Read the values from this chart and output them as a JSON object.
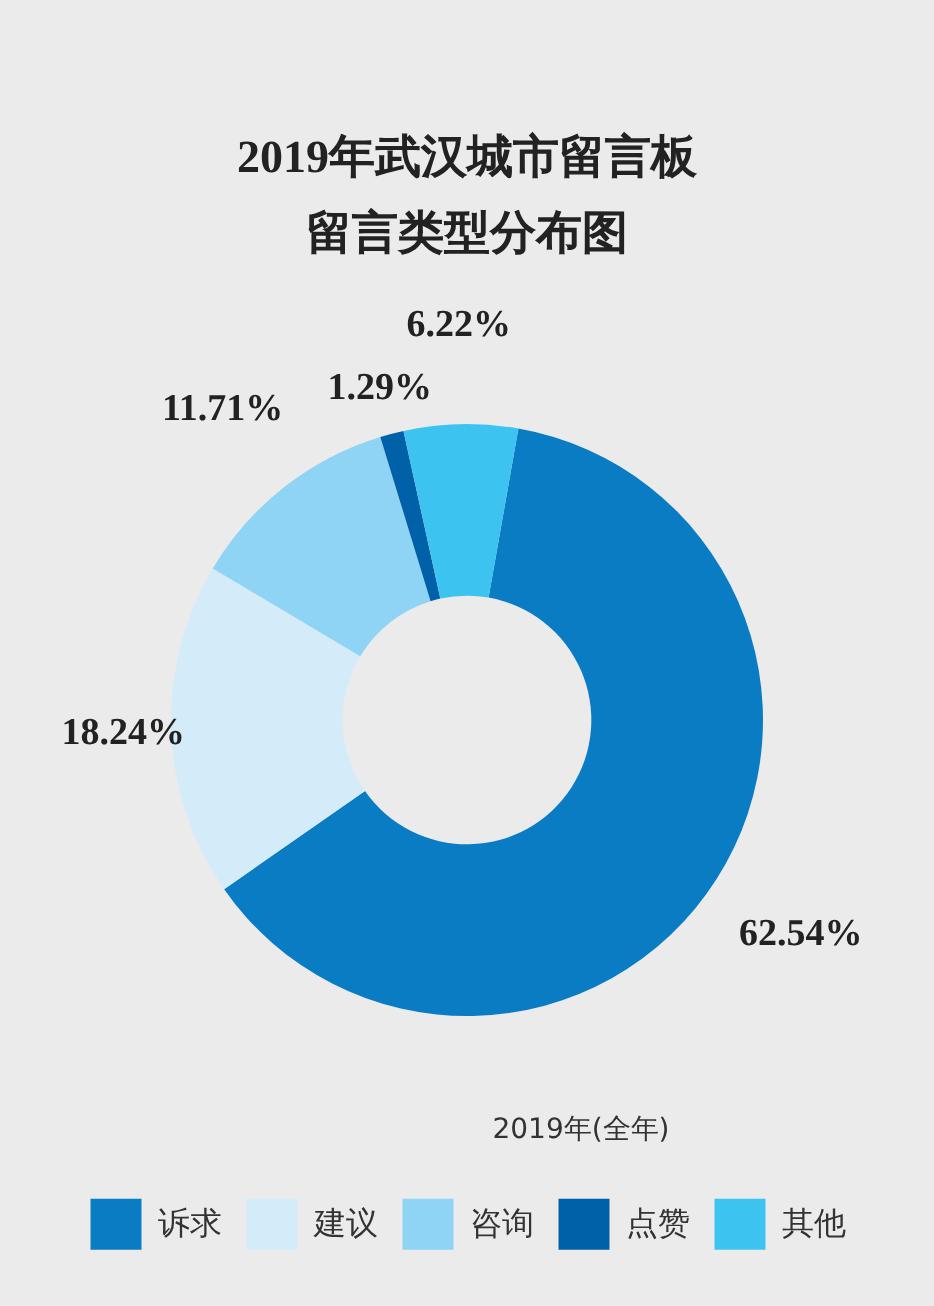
{
  "chart_data": {
    "type": "donut",
    "title": "2019年武汉城市留言板留言类型分布图",
    "categories": [
      "诉求",
      "建议",
      "咨询",
      "点赞",
      "其他"
    ],
    "values": [
      62.54,
      18.24,
      11.71,
      1.29,
      6.22
    ],
    "colors": [
      "#0a7cc4",
      "#d4ecf9",
      "#8fd3f5",
      "#0060a8",
      "#3dc3f0"
    ],
    "value_labels": [
      "62.54%",
      "18.24%",
      "11.71%",
      "1.29%",
      "6.22%"
    ],
    "annotations": [
      "2019年(全年)"
    ],
    "legend": "bottom"
  }
}
